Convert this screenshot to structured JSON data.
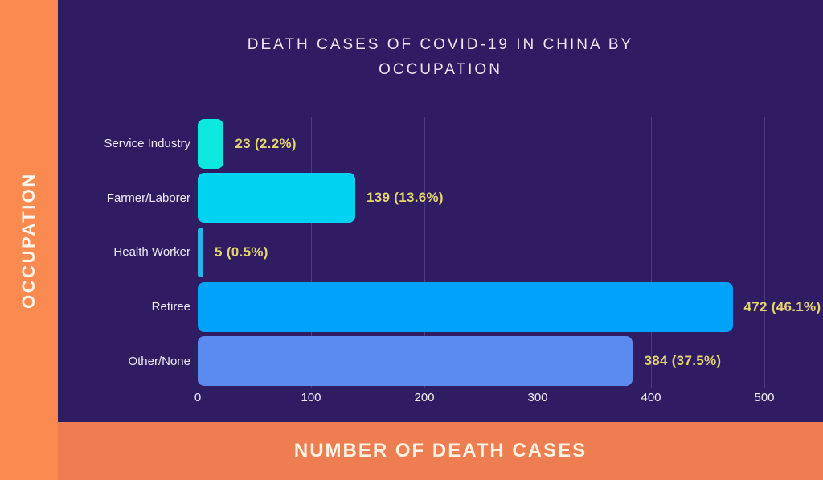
{
  "title": "DEATH CASES OF COVID-19 IN CHINA BY OCCUPATION",
  "colors": {
    "background": "#2f1c63",
    "sidebar_band": "#fb8a50",
    "footer_band": "#ee7e52",
    "grid_line": "#4c3b82",
    "value_label": "#e3d570",
    "category_label": "#f1ecfa",
    "title_text": "#eee6f2"
  },
  "chart_data": {
    "type": "bar",
    "orientation": "horizontal",
    "title": "DEATH CASES OF COVID-19 IN CHINA BY OCCUPATION",
    "xlabel": "NUMBER OF DEATH CASES",
    "ylabel": "OCCUPATION",
    "categories": [
      "Service Industry",
      "Farmer/Laborer",
      "Health Worker",
      "Retiree",
      "Other/None"
    ],
    "values": [
      23,
      139,
      5,
      472,
      384
    ],
    "percentages": [
      2.2,
      13.6,
      0.5,
      46.1,
      37.5
    ],
    "value_labels": [
      "23 (2.2%)",
      "139 (13.6%)",
      "5 (0.5%)",
      "472 (46.1%)",
      "384 (37.5%)"
    ],
    "bar_colors": [
      "#0de8de",
      "#00d2f2",
      "#2bb1f0",
      "#00a2fa",
      "#5b8bee"
    ],
    "xticks": [
      0,
      100,
      200,
      300,
      400,
      500
    ],
    "xlim": [
      0,
      500
    ],
    "grid": true,
    "legend": false
  }
}
